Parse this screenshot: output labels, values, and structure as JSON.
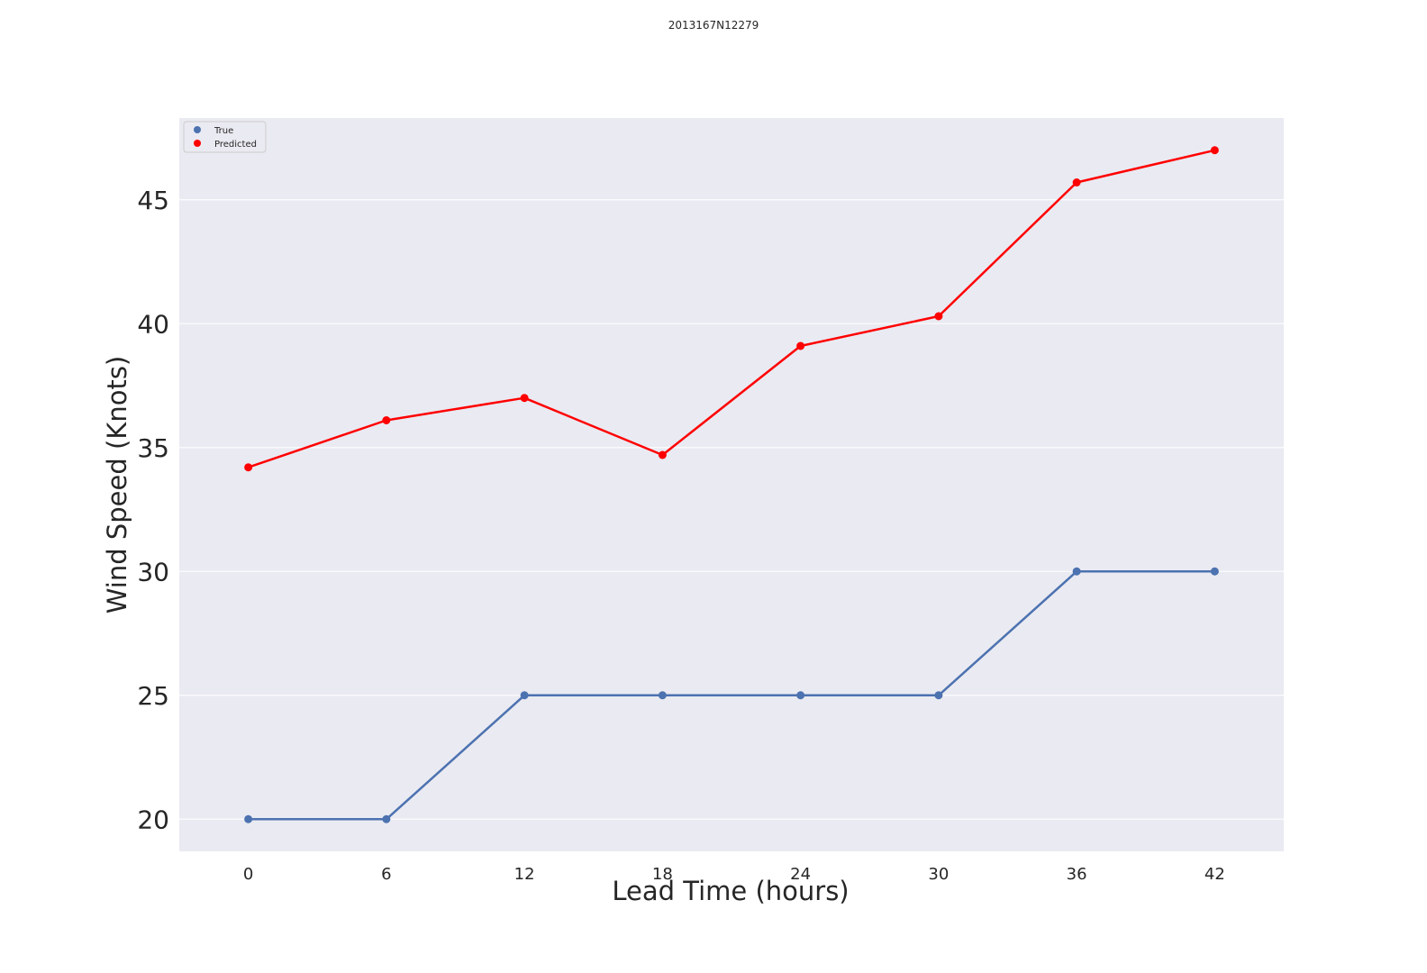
{
  "chart_data": {
    "type": "line",
    "title": "2013167N12279",
    "xlabel": "Lead Time (hours)",
    "ylabel": "Wind Speed (Knots)",
    "x": [
      0,
      6,
      12,
      18,
      24,
      30,
      36,
      42
    ],
    "xticks": [
      "0",
      "6",
      "12",
      "18",
      "24",
      "30",
      "36",
      "42"
    ],
    "yticks": [
      "20",
      "25",
      "30",
      "35",
      "40",
      "45"
    ],
    "xlim": [
      -3,
      45
    ],
    "ylim": [
      18.7,
      48.3
    ],
    "grid": true,
    "legend_position": "top-left",
    "series": [
      {
        "name": "True",
        "color": "#4c72b0",
        "values": [
          20,
          20,
          25,
          25,
          25,
          25,
          30,
          30
        ]
      },
      {
        "name": "Predicted",
        "color": "#ff0000",
        "values": [
          34.2,
          36.1,
          37.0,
          34.7,
          39.1,
          40.3,
          45.7,
          47.0
        ]
      }
    ]
  }
}
